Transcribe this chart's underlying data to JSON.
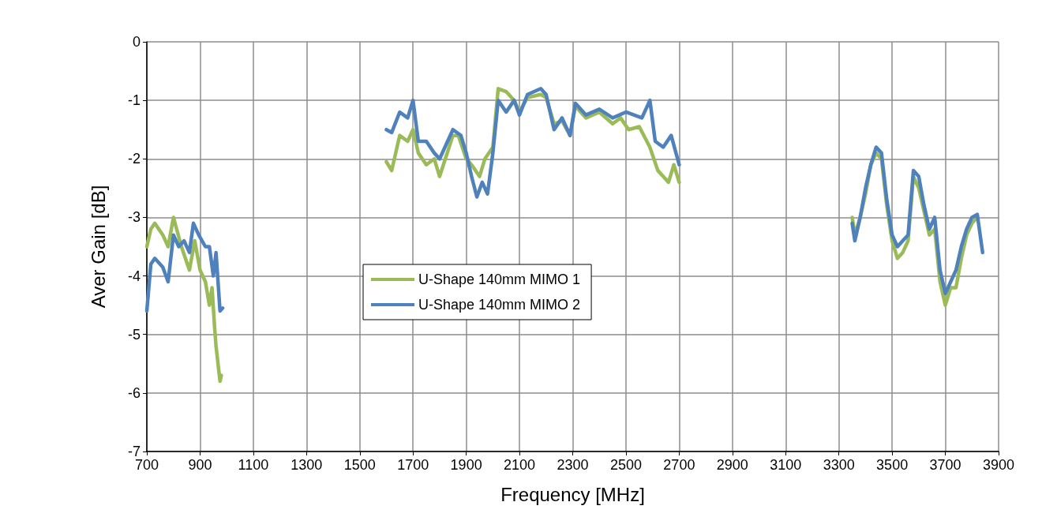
{
  "chart_data": {
    "type": "line",
    "xlabel": "Frequency [MHz]",
    "ylabel": "Aver Gain [dB]",
    "xlim": [
      700,
      3900
    ],
    "xticks": [
      700,
      900,
      1100,
      1300,
      1500,
      1700,
      1900,
      2100,
      2300,
      2500,
      2700,
      2900,
      3100,
      3300,
      3500,
      3700,
      3900
    ],
    "ylim": [
      -7,
      0
    ],
    "yticks": [
      -7,
      -6,
      -5,
      -4,
      -3,
      -2,
      -1,
      0
    ],
    "grid": true,
    "legend": "center left",
    "marker": "none",
    "line_style": "solid",
    "series": [
      {
        "name": "U-Shape 140mm MIMO 1",
        "color": "#9bbb59",
        "x": [
          700,
          715,
          730,
          760,
          780,
          800,
          830,
          860,
          880,
          900,
          920,
          935,
          945,
          955,
          960,
          975,
          980,
          1290,
          1600,
          1620,
          1650,
          1680,
          1700,
          1720,
          1750,
          1780,
          1800,
          1850,
          1870,
          1900,
          1920,
          1950,
          1970,
          2000,
          2020,
          2050,
          2080,
          2100,
          2130,
          2180,
          2200,
          2230,
          2260,
          2290,
          2310,
          2350,
          2400,
          2450,
          2480,
          2510,
          2550,
          2590,
          2620,
          2640,
          2660,
          2680,
          2700,
          3025,
          3350,
          3360,
          3380,
          3400,
          3420,
          3440,
          3460,
          3480,
          3500,
          3520,
          3540,
          3560,
          3580,
          3600,
          3620,
          3640,
          3660,
          3680,
          3700,
          3720,
          3740,
          3760,
          3780,
          3800,
          3820
        ],
        "values": [
          -3.5,
          -3.2,
          -3.1,
          -3.3,
          -3.5,
          -3.0,
          -3.5,
          -3.9,
          -3.4,
          -3.9,
          -4.1,
          -4.5,
          -4.2,
          -4.9,
          -5.2,
          -5.8,
          -5.7,
          null,
          -2.05,
          -2.2,
          -1.6,
          -1.7,
          -1.5,
          -1.9,
          -2.1,
          -2.0,
          -2.3,
          -1.6,
          -1.6,
          -2.0,
          -2.1,
          -2.3,
          -2.0,
          -1.8,
          -0.8,
          -0.85,
          -1.0,
          -1.2,
          -0.95,
          -0.9,
          -0.95,
          -1.4,
          -1.35,
          -1.6,
          -1.1,
          -1.3,
          -1.2,
          -1.4,
          -1.3,
          -1.5,
          -1.45,
          -1.8,
          -2.2,
          -2.3,
          -2.4,
          -2.1,
          -2.4,
          null,
          -3.0,
          -3.3,
          -3.0,
          -2.6,
          -2.1,
          -1.9,
          -2.0,
          -2.8,
          -3.4,
          -3.7,
          -3.6,
          -3.4,
          -2.3,
          -2.5,
          -2.9,
          -3.3,
          -3.2,
          -4.1,
          -4.5,
          -4.2,
          -4.2,
          -3.7,
          -3.3,
          -3.1,
          -3.0
        ]
      },
      {
        "name": "U-Shape 140mm MIMO 2",
        "color": "#4f81bd",
        "x": [
          700,
          715,
          730,
          760,
          780,
          800,
          820,
          840,
          860,
          875,
          895,
          920,
          935,
          950,
          960,
          975,
          985,
          1290,
          1600,
          1620,
          1650,
          1680,
          1700,
          1720,
          1750,
          1780,
          1800,
          1850,
          1880,
          1900,
          1920,
          1940,
          1960,
          1980,
          2000,
          2020,
          2050,
          2080,
          2100,
          2130,
          2180,
          2200,
          2230,
          2260,
          2290,
          2310,
          2350,
          2400,
          2450,
          2500,
          2560,
          2590,
          2610,
          2640,
          2670,
          2700,
          3025,
          3350,
          3360,
          3380,
          3400,
          3420,
          3440,
          3460,
          3480,
          3500,
          3520,
          3540,
          3560,
          3580,
          3600,
          3620,
          3640,
          3660,
          3680,
          3700,
          3720,
          3740,
          3760,
          3780,
          3800,
          3820,
          3840
        ],
        "values": [
          -4.6,
          -3.8,
          -3.7,
          -3.85,
          -4.1,
          -3.3,
          -3.5,
          -3.4,
          -3.6,
          -3.1,
          -3.3,
          -3.5,
          -3.5,
          -4.0,
          -3.6,
          -4.6,
          -4.55,
          null,
          -1.5,
          -1.55,
          -1.2,
          -1.3,
          -1.0,
          -1.7,
          -1.7,
          -1.9,
          -2.0,
          -1.5,
          -1.6,
          -1.9,
          -2.3,
          -2.65,
          -2.4,
          -2.6,
          -1.9,
          -1.0,
          -1.2,
          -1.0,
          -1.25,
          -0.9,
          -0.8,
          -0.9,
          -1.5,
          -1.3,
          -1.6,
          -1.05,
          -1.25,
          -1.15,
          -1.3,
          -1.2,
          -1.3,
          -1.0,
          -1.7,
          -1.8,
          -1.6,
          -2.1,
          null,
          -3.1,
          -3.4,
          -3.0,
          -2.5,
          -2.1,
          -1.8,
          -1.9,
          -2.7,
          -3.3,
          -3.5,
          -3.4,
          -3.3,
          -2.2,
          -2.3,
          -2.8,
          -3.2,
          -3.0,
          -3.9,
          -4.3,
          -4.1,
          -3.9,
          -3.5,
          -3.2,
          -3.0,
          -2.95,
          -3.6
        ]
      }
    ]
  }
}
